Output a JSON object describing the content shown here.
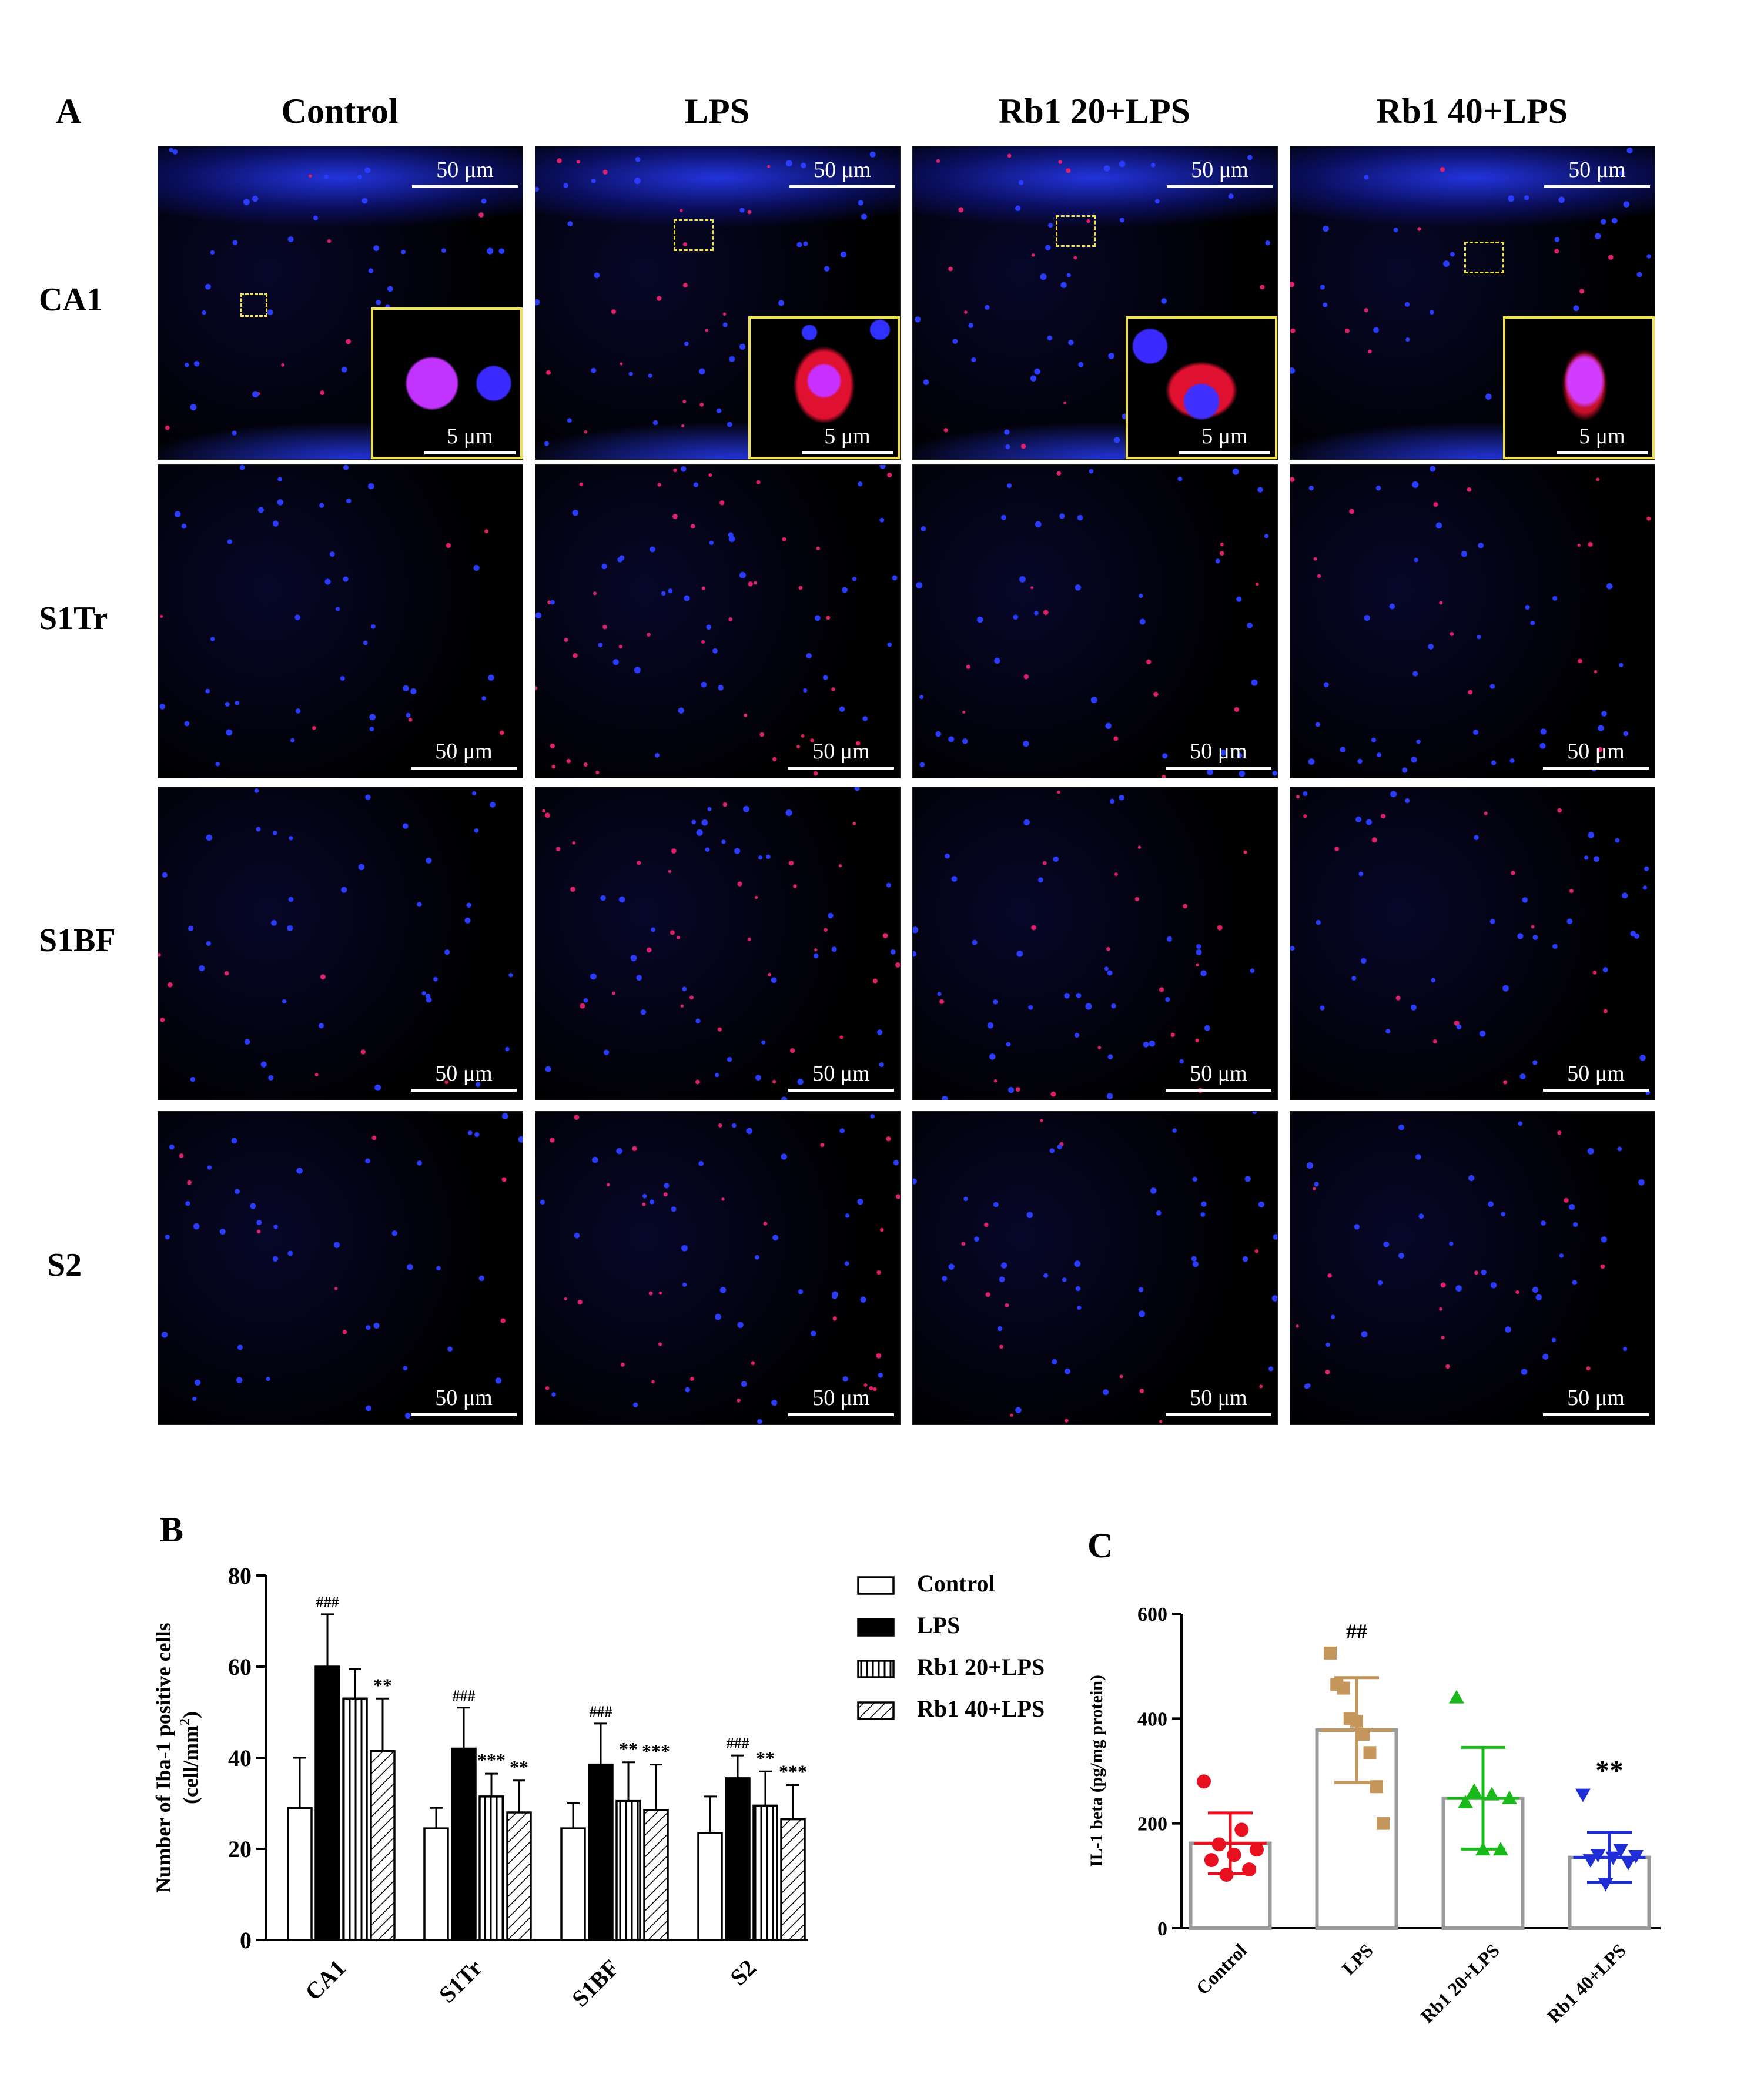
{
  "panel_a": {
    "letter": "A",
    "columns": [
      "Control",
      "LPS",
      "Rb1 20+LPS",
      "Rb1 40+LPS"
    ],
    "rows": [
      "CA1",
      "S1Tr",
      "S1BF",
      "S2"
    ],
    "scale_large": "50 μm",
    "scale_small": "5 μm"
  },
  "panel_b": {
    "letter": "B"
  },
  "panel_c": {
    "letter": "C"
  },
  "chart_data": [
    {
      "type": "bar",
      "panel": "B",
      "ylabel_line1": "Number of Iba-1 positive cells",
      "ylabel_line2_base": "(cell/mm",
      "ylabel_line2_sup": "2",
      "ylabel_line2_end": ")",
      "ylim": [
        0,
        80
      ],
      "yticks": [
        0,
        20,
        40,
        60,
        80
      ],
      "categories": [
        "CA1",
        "S1Tr",
        "S1BF",
        "S2"
      ],
      "series": [
        {
          "name": "Control",
          "values": [
            29,
            24.5,
            24.5,
            23.5
          ],
          "errors": [
            11,
            4.5,
            5.5,
            8
          ],
          "marks": [
            "",
            "",
            "",
            ""
          ],
          "fill": "white"
        },
        {
          "name": "LPS",
          "values": [
            60,
            42,
            38.5,
            35.5
          ],
          "errors": [
            11.5,
            9,
            9,
            5
          ],
          "marks": [
            "###",
            "###",
            "###",
            "###"
          ],
          "fill": "black"
        },
        {
          "name": "Rb1 20+LPS",
          "values": [
            53,
            31.5,
            30.5,
            29.5
          ],
          "errors": [
            6.5,
            5,
            8.5,
            7.5
          ],
          "marks": [
            "",
            "***",
            "**",
            "**"
          ],
          "fill": "vertical"
        },
        {
          "name": "Rb1 40+LPS",
          "values": [
            41.5,
            28,
            28.5,
            26.5
          ],
          "errors": [
            11.5,
            7,
            10,
            7.5
          ],
          "marks": [
            "**",
            "**",
            "***",
            "***"
          ],
          "fill": "diagonal"
        }
      ],
      "legend": "right"
    },
    {
      "type": "bar",
      "panel": "C",
      "ylabel": "IL-1 beta (pg/mg protein)",
      "ylim": [
        0,
        600
      ],
      "yticks": [
        0,
        200,
        400,
        600
      ],
      "categories": [
        "Control",
        "LPS",
        "Rb1 20+LPS",
        "Rb1 40+LPS"
      ],
      "means": [
        162,
        378,
        248,
        135
      ],
      "sd": [
        58,
        100,
        97,
        48
      ],
      "marks": [
        "",
        "##",
        "",
        "**"
      ],
      "colors": [
        "#e8101e",
        "#c6975c",
        "#1ab81a",
        "#1f2ed6"
      ],
      "markers": [
        "circle",
        "square",
        "triangle-up",
        "triangle-down"
      ],
      "points": [
        [
          280,
          188,
          160,
          150,
          140,
          130,
          112,
          102
        ],
        [
          525,
          465,
          458,
          400,
          395,
          370,
          335,
          270,
          200
        ],
        [
          440,
          262,
          255,
          248,
          240,
          150,
          150
        ],
        [
          255,
          150,
          140,
          138,
          135,
          130,
          125,
          85
        ]
      ]
    }
  ]
}
